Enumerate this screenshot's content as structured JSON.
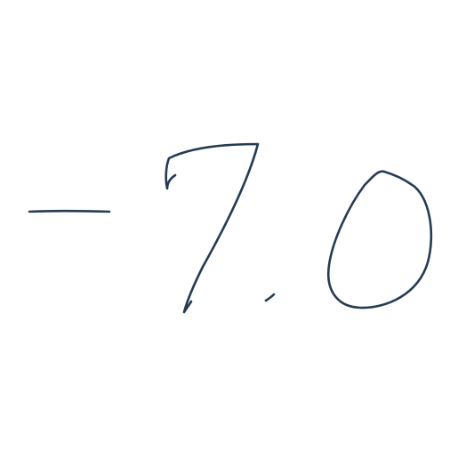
{
  "handwriting": {
    "text": "-7.0",
    "ink_color": "#243b53",
    "background_color": "#ffffff"
  }
}
